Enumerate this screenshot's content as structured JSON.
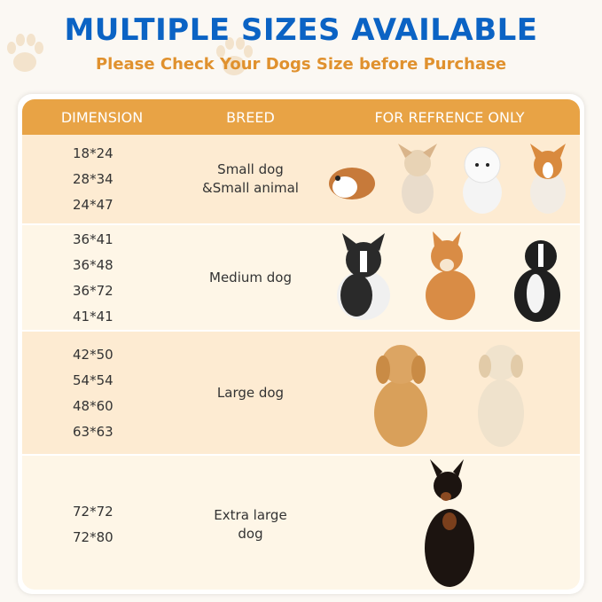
{
  "title": "MULTIPLE SIZES AVAILABLE",
  "subtitle": "Please Check Your Dogs Size before Purchase",
  "colors": {
    "title": "#0b63c4",
    "subtitle": "#e0912e",
    "header": "#e8a345",
    "row_dark": "#fdebd2",
    "row_light": "#fef6e7"
  },
  "table": {
    "headers": [
      "DIMENSION",
      "BREED",
      "FOR REFRENCE ONLY"
    ],
    "rows": [
      {
        "dimensions": [
          "18*24",
          "28*34",
          "24*47"
        ],
        "breed": [
          "Small dog",
          "&Small animal"
        ],
        "pictures": [
          "guinea-pig",
          "chihuahua",
          "bichon-frise",
          "corgi"
        ]
      },
      {
        "dimensions": [
          "36*41",
          "36*48",
          "36*72",
          "41*41"
        ],
        "breed": [
          "Medium dog"
        ],
        "pictures": [
          "french-bulldog",
          "shiba-inu",
          "border-collie"
        ]
      },
      {
        "dimensions": [
          "42*50",
          "54*54",
          "48*60",
          "63*63"
        ],
        "breed": [
          "Large dog"
        ],
        "pictures": [
          "golden-retriever",
          "labrador"
        ]
      },
      {
        "dimensions": [
          "72*72",
          "72*80"
        ],
        "breed": [
          "Extra large",
          "dog"
        ],
        "pictures": [
          "doberman"
        ]
      }
    ]
  }
}
